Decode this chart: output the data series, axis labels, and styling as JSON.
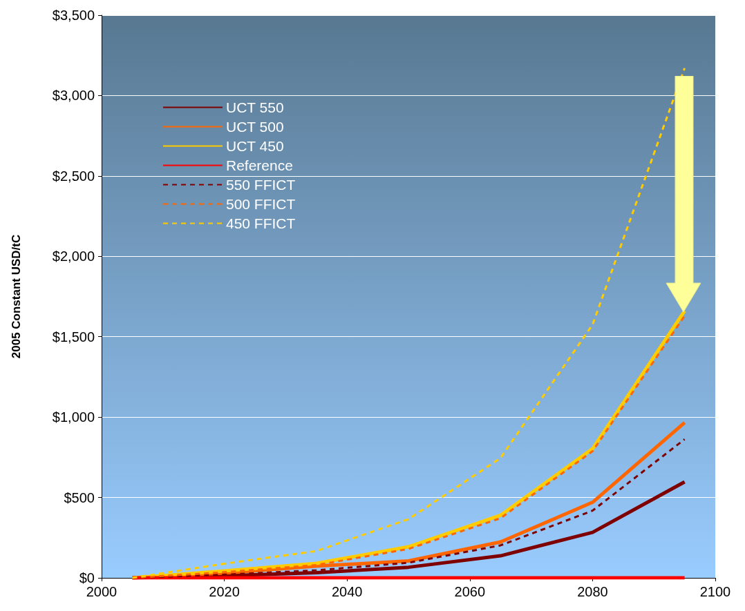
{
  "chart_data": {
    "type": "line",
    "ylabel": "2005 Constant USD/tC",
    "x": [
      2005,
      2020,
      2035,
      2050,
      2065,
      2080,
      2095
    ],
    "series": [
      {
        "name": "UCT 550",
        "color": "#7f0000",
        "line_style": "solid",
        "values": [
          0,
          13,
          32,
          66,
          137,
          283,
          597
        ]
      },
      {
        "name": "UCT 500",
        "color": "#ff6600",
        "line_style": "solid",
        "values": [
          0,
          30,
          73,
          105,
          223,
          470,
          966
        ]
      },
      {
        "name": "UCT 450",
        "color": "#ffcc00",
        "line_style": "solid",
        "values": [
          0,
          43,
          90,
          193,
          389,
          803,
          1660
        ]
      },
      {
        "name": "Reference",
        "color": "#ff0000",
        "line_style": "solid",
        "values": [
          0,
          0,
          0,
          0,
          0,
          0,
          0
        ]
      },
      {
        "name": "550 FFICT",
        "color": "#7f0000",
        "line_style": "dashed",
        "values": [
          0,
          20,
          47,
          94,
          202,
          418,
          862
        ]
      },
      {
        "name": "500 FFICT",
        "color": "#ff6600",
        "line_style": "dashed",
        "values": [
          0,
          35,
          80,
          180,
          371,
          788,
          1630
        ]
      },
      {
        "name": "450 FFICT",
        "color": "#ffcc00",
        "line_style": "dashed",
        "values": [
          0,
          88,
          167,
          365,
          745,
          1575,
          3170
        ]
      }
    ],
    "xlim": [
      2000,
      2100
    ],
    "xticks": [
      2000,
      2020,
      2040,
      2060,
      2080,
      2100
    ],
    "ylim": [
      0,
      3500
    ],
    "yticks": [
      {
        "value": 0,
        "label": "$0"
      },
      {
        "value": 500,
        "label": "$500"
      },
      {
        "value": 1000,
        "label": "$1,000"
      },
      {
        "value": 1500,
        "label": "$1,500"
      },
      {
        "value": 2000,
        "label": "$2,000"
      },
      {
        "value": 2500,
        "label": "$2,500"
      },
      {
        "value": 3000,
        "label": "$3,000"
      },
      {
        "value": 3500,
        "label": "$3,500"
      }
    ],
    "grid": "y",
    "legend": "top left",
    "marker": "none"
  }
}
